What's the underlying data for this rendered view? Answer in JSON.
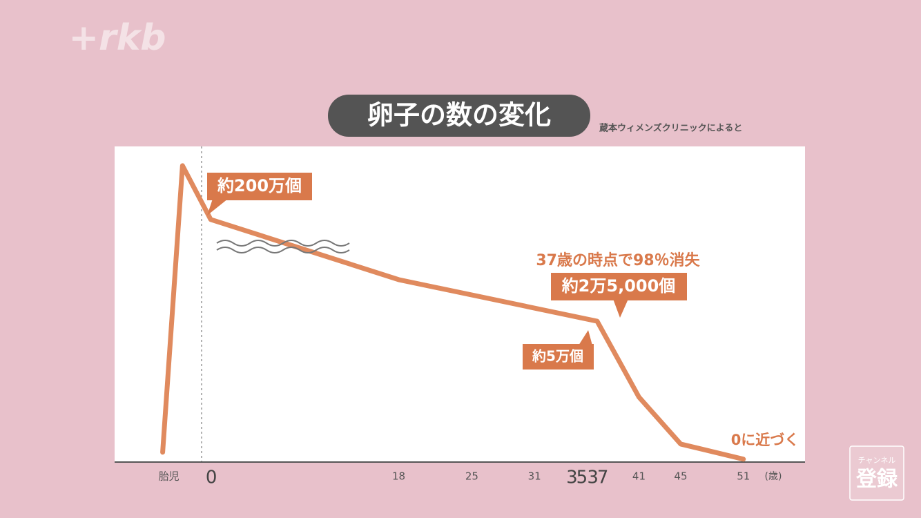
{
  "logo": "+rkb",
  "subscribe": {
    "caption": "チャンネル",
    "label": "登録"
  },
  "chart_data": {
    "type": "line",
    "title": "卵子の数の変化",
    "source": "蔵本ウィメンズクリニックによると",
    "x_unit": "(歳)",
    "x": [
      -4.6,
      -2.7,
      0,
      18,
      37,
      41,
      45,
      51
    ],
    "series": [
      {
        "color": "#e08a5e",
        "values": [
          2.9,
          93.9,
          76.8,
          57.7,
          44.5,
          20.4,
          5.5,
          0.7
        ]
      }
    ],
    "xlim": [
      -9.2,
      56.9
    ],
    "ylim": [
      0,
      100
    ],
    "xticks": [
      {
        "value": -4,
        "label": "胎児"
      },
      0,
      18,
      25,
      31,
      35,
      37,
      41,
      45,
      51
    ],
    "annotations": [
      "約200万個",
      "37歳の時点で98％消失",
      "約2万5,000個",
      "約5万個",
      "0に近づく"
    ]
  }
}
